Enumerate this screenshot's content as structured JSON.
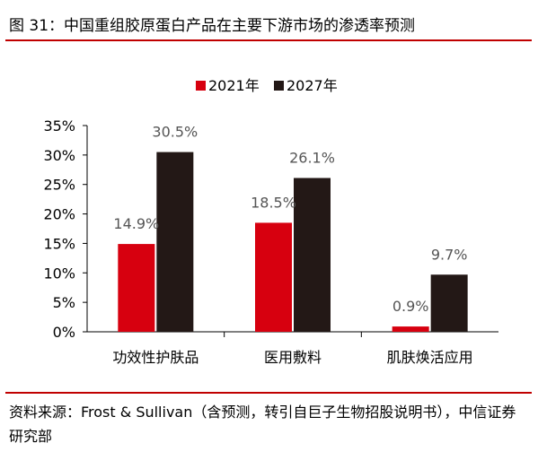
{
  "figure": {
    "title": "图 31：中国重组胶原蛋白产品在主要下游市场的渗透率预测",
    "source": "资料来源：Frost & Sullivan（含预测，转引自巨子生物招股说明书），中信证券研究部"
  },
  "chart_data": {
    "type": "bar",
    "categories": [
      "功效性护肤品",
      "医用敷料",
      "肌肤焕活应用"
    ],
    "series": [
      {
        "name": "2021年",
        "color": "#d7000f",
        "values": [
          14.9,
          18.5,
          0.9
        ],
        "labels": [
          "14.9%",
          "18.5%",
          "0.9%"
        ]
      },
      {
        "name": "2027年",
        "color": "#231816",
        "values": [
          30.5,
          26.1,
          9.7
        ],
        "labels": [
          "30.5%",
          "26.1%",
          "9.7%"
        ]
      }
    ],
    "yticks": [
      "0%",
      "5%",
      "10%",
      "15%",
      "20%",
      "25%",
      "30%",
      "35%"
    ],
    "ylim": [
      0,
      35
    ],
    "legend_position": "top-center",
    "grid": false
  }
}
